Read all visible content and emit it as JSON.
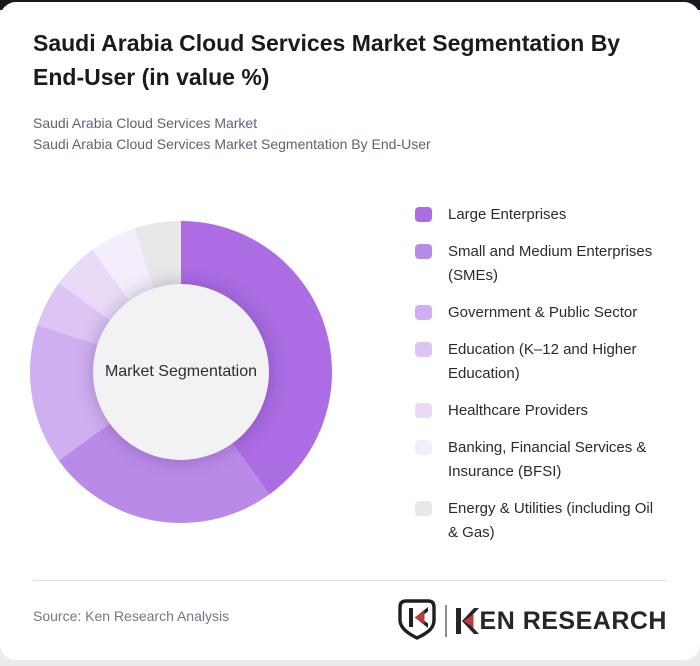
{
  "header": {
    "title": "Saudi Arabia Cloud Services Market Segmentation By End-User (in value %)",
    "title_lines": [
      "Saudi Arabia Cloud Services Market Segmentation By",
      "End-User (in value %)"
    ],
    "subtitle_lines": [
      "Saudi Arabia Cloud Services Market",
      "Saudi Arabia Cloud Services Market Segmentation By End-User"
    ]
  },
  "chart_data": {
    "type": "pie",
    "variant": "donut",
    "title": "Saudi Arabia Cloud Services Market Segmentation By End-User (in value %)",
    "unit": "value %",
    "center_label": "Market Segmentation",
    "legend_position": "right",
    "start_angle_deg": 0,
    "direction": "clockwise",
    "segments": [
      {
        "label": "Large Enterprises",
        "display_lines": [
          "Large Enterprises"
        ],
        "value": 40,
        "color": "#ac6ce4"
      },
      {
        "label": "Small and Medium Enterprises (SMEs)",
        "display_lines": [
          "Small and Medium Enterprises",
          "(SMEs)"
        ],
        "value": 25,
        "color": "#ba8ae9"
      },
      {
        "label": "Government & Public Sector",
        "display_lines": [
          "Government & Public Sector"
        ],
        "value": 15,
        "color": "#d0aff0"
      },
      {
        "label": "Education (K–12 and Higher Education)",
        "display_lines": [
          "Education (K–12 and Higher",
          "Education)"
        ],
        "value": 5,
        "color": "#dcc4f4"
      },
      {
        "label": "Healthcare Providers",
        "display_lines": [
          "Healthcare Providers"
        ],
        "value": 5,
        "color": "#e9dbf8"
      },
      {
        "label": "Banking, Financial Services & Insurance (BFSI)",
        "display_lines": [
          "Banking, Financial Services &",
          "Insurance (BFSI)"
        ],
        "value": 5,
        "color": "#f4edfc"
      },
      {
        "label": "Energy & Utilities (including Oil & Gas)",
        "display_lines": [
          "Energy & Utilities (including Oil",
          "& Gas)"
        ],
        "value": 5,
        "color": "#e9e7ea"
      }
    ]
  },
  "footer": {
    "source": "Source: Ken Research Analysis",
    "brand": "KEN RESEARCH",
    "brand_rest": "EN RESEARCH",
    "logo_red": "#c1393d",
    "logo_dark": "#1f1f1f"
  }
}
